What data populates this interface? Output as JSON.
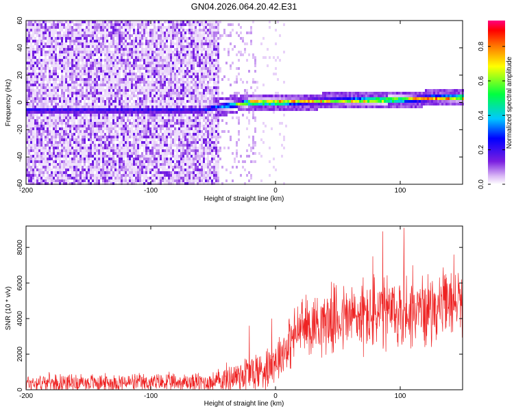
{
  "figure_title": "GN04.2026.064.20.42.E31",
  "colors": {
    "snr_line": "#ee2222",
    "background": "#ffffff",
    "axis": "#000000"
  },
  "chart_data": [
    {
      "type": "heatmap",
      "title": "GN04.2026.064.20.42.E31",
      "xlabel": "Height of straight line (km)",
      "ylabel": "Frequency (Hz)",
      "xlim": [
        -200,
        150
      ],
      "ylim": [
        -60,
        60
      ],
      "x_ticks": [
        -200,
        -100,
        0,
        100
      ],
      "x_tick_labels": [
        "-200",
        "-100",
        "0",
        "100"
      ],
      "y_ticks": [
        60,
        40,
        20,
        0,
        -20,
        -40,
        -60
      ],
      "y_tick_labels": [
        "60",
        "40",
        "20",
        "0",
        "-20",
        "-40",
        "-60"
      ],
      "colorbar": {
        "label": "Normalized spectral amplitude",
        "range": [
          0,
          0.95
        ],
        "ticks": [
          0.0,
          0.2,
          0.4,
          0.6,
          0.8
        ],
        "tick_labels": [
          "0.0",
          "0.2",
          "0.4",
          "0.6",
          "0.8"
        ],
        "colormap": "rainbow"
      },
      "ridge": [
        {
          "x": -60,
          "y": -6,
          "amp": 0.25
        },
        {
          "x": -45,
          "y": -3,
          "amp": 0.35
        },
        {
          "x": -35,
          "y": -2,
          "amp": 0.45
        },
        {
          "x": -20,
          "y": 0,
          "amp": 0.85
        },
        {
          "x": 0,
          "y": 0,
          "amp": 0.9
        },
        {
          "x": 20,
          "y": 0.5,
          "amp": 0.8
        },
        {
          "x": 50,
          "y": 1,
          "amp": 0.7
        },
        {
          "x": 80,
          "y": 1.5,
          "amp": 0.85
        },
        {
          "x": 100,
          "y": 2,
          "amp": 0.75
        },
        {
          "x": 125,
          "y": 3,
          "amp": 0.9
        },
        {
          "x": 150,
          "y": 3.5,
          "amp": 0.85
        }
      ],
      "noise_region": {
        "x_from": -200,
        "x_to": -45,
        "amp_range": [
          0.0,
          0.15
        ]
      }
    },
    {
      "type": "line",
      "title": "",
      "xlabel": "Height of straight line (km)",
      "ylabel": "SNR (10 * v/v)",
      "xlim": [
        -200,
        150
      ],
      "ylim": [
        0,
        9200
      ],
      "x_ticks": [
        -200,
        -100,
        0,
        100
      ],
      "x_tick_labels": [
        "-200",
        "-100",
        "0",
        "100"
      ],
      "y_ticks": [
        0,
        2000,
        4000,
        6000,
        8000
      ],
      "y_tick_labels": [
        "0",
        "2000",
        "4000",
        "6000",
        "8000"
      ],
      "series": [
        {
          "color": "#ee2222",
          "envelope": {
            "x": [
              -200,
              -150,
              -100,
              -50,
              -35,
              -25,
              -10,
              0,
              10,
              20,
              40,
              60,
              80,
              100,
              120,
              150
            ],
            "baseline": [
              400,
              400,
              400,
              420,
              700,
              900,
              1100,
              1700,
              2500,
              3500,
              3900,
              4100,
              4200,
              4300,
              4500,
              5000
            ],
            "amplitude": [
              600,
              600,
              600,
              700,
              1100,
              1400,
              1500,
              1500,
              1800,
              2000,
              2200,
              2500,
              2700,
              2600,
              2300,
              2200
            ]
          },
          "peaks": [
            {
              "x": -21,
              "y": 3600
            },
            {
              "x": -3,
              "y": 4000
            },
            {
              "x": 78,
              "y": 7500
            },
            {
              "x": 86,
              "y": 8900
            },
            {
              "x": 103,
              "y": 9100
            },
            {
              "x": 110,
              "y": 7000
            },
            {
              "x": 143,
              "y": 7600
            }
          ]
        }
      ]
    }
  ]
}
